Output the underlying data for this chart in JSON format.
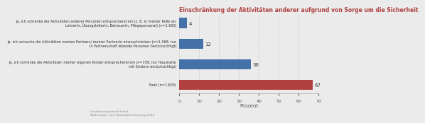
{
  "title": "Einschränkung der Aktivitäten anderer aufgrund von Sorge um die Sicherheit",
  "categories": [
    "Ja, ich schränke die Aktivitäten anderer Personen entsprechend ein (z. B. in meiner Rolle als\nLehrerIn, ÜbungsleiterIn, BetreuerIn, Pflegepersonal) (n=1.600)",
    "Ja, ich versuche die Aktivitäten meines Partners/ meiner Partnerin einzuschränken (n=1.068, nur\nin Partnerschaft lebende Personen berücksichtigt)",
    "Ja, ich schränke die Aktivitäten meiner eigenen Kinder entsprechend ein (n=359, nur Haushalte\nmit Kindern berücksichtigt)",
    "Nein (n=1.600)"
  ],
  "values": [
    4,
    12,
    36,
    67
  ],
  "bar_colors": [
    "#4472a8",
    "#4472a8",
    "#4472a8",
    "#b04040"
  ],
  "xlim": [
    0,
    70
  ],
  "xticks": [
    0,
    10,
    20,
    30,
    40,
    50,
    60,
    70
  ],
  "xlabel": "Prozent",
  "source_line1": "Landeshaupsstadt Erfurt",
  "source_line2": "Wohnungs- und Haushaltserhebung 2018",
  "title_color": "#b04040",
  "grid_color": "#cccccc",
  "background_color": "#ebebeb"
}
